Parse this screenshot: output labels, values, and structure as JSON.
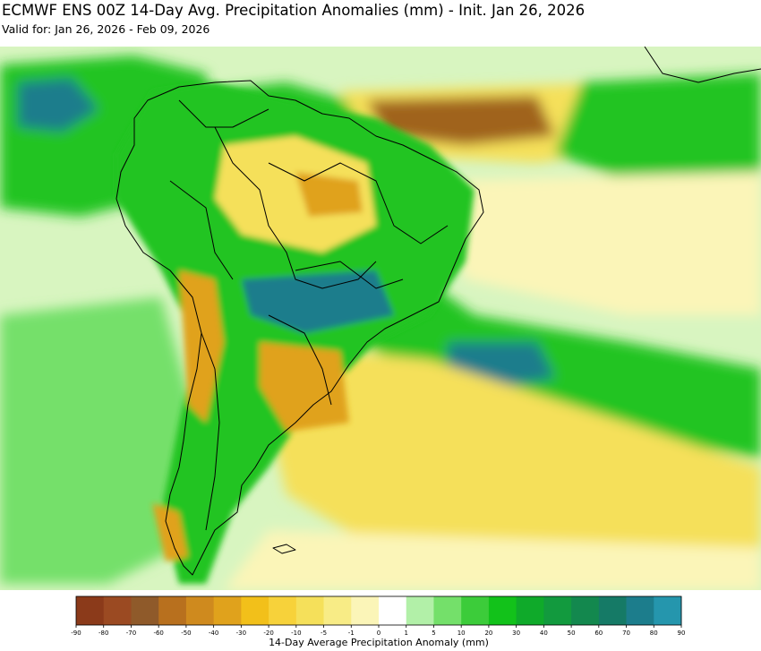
{
  "header": {
    "title": "ECMWF ENS 00Z 14-Day Avg. Precipitation Anomalies (mm) - Init. Jan 26, 2026",
    "subtitle": "Valid for: Jan 26, 2026 - Feb 09, 2026"
  },
  "colorbar": {
    "label": "14-Day Average Precipitation Anomaly (mm)",
    "ticks": [
      "-90",
      "-80",
      "-70",
      "-60",
      "-50",
      "-40",
      "-30",
      "-20",
      "-10",
      "-5",
      "-1",
      "0",
      "1",
      "5",
      "10",
      "20",
      "30",
      "40",
      "50",
      "60",
      "70",
      "80",
      "90"
    ],
    "colors": [
      "#8b3a1a",
      "#9b4a22",
      "#8f5a2a",
      "#b8701e",
      "#cf8a1e",
      "#e0a21c",
      "#f2c01a",
      "#f7d23a",
      "#f5e05a",
      "#f8ec86",
      "#fbf5b8",
      "#ffffff",
      "#b2f0a8",
      "#74e06a",
      "#3ccc3a",
      "#12c21a",
      "#0faa2a",
      "#129a3e",
      "#13884e",
      "#157a66",
      "#1c7d8c",
      "#2596ad"
    ]
  },
  "map": {
    "colors": {
      "ocean_base": "#d8f5c0",
      "dry_strong": "#a0641e",
      "dry_mid": "#e0a21c",
      "dry_light": "#f5e05a",
      "dry_faint": "#fbf5b8",
      "wet_faint": "#b2f0a8",
      "wet_light": "#74e06a",
      "wet_mid": "#22c422",
      "wet_strong": "#0f9a34",
      "wet_very": "#1c7d8c",
      "border": "#000000"
    }
  }
}
